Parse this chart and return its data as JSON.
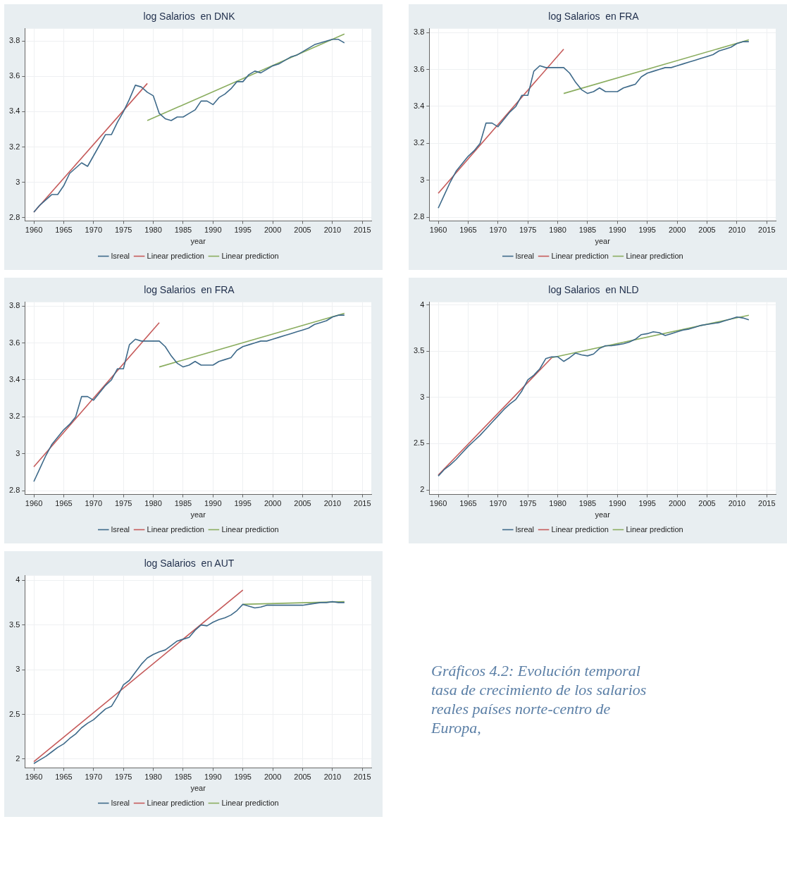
{
  "chart_data": [
    {
      "type": "line",
      "title": "log Salarios  en DNK",
      "xlabel": "year",
      "xlim": [
        1958.5,
        2016.5
      ],
      "xticks": [
        1960,
        1965,
        1970,
        1975,
        1980,
        1985,
        1990,
        1995,
        2000,
        2005,
        2010,
        2015
      ],
      "ylim": [
        2.78,
        3.87
      ],
      "yticks": [
        2.8,
        3,
        3.2,
        3.4,
        3.6,
        3.8
      ],
      "grid": true,
      "legend": "bottom",
      "marker": "none",
      "series": [
        {
          "name": "lsreal",
          "color": "#3e6a8a",
          "x": [
            1960,
            1961,
            1962,
            1963,
            1964,
            1965,
            1966,
            1967,
            1968,
            1969,
            1970,
            1971,
            1972,
            1973,
            1974,
            1975,
            1976,
            1977,
            1978,
            1979,
            1980,
            1981,
            1982,
            1983,
            1984,
            1985,
            1986,
            1987,
            1988,
            1989,
            1990,
            1991,
            1992,
            1993,
            1994,
            1995,
            1996,
            1997,
            1998,
            1999,
            2000,
            2001,
            2002,
            2003,
            2004,
            2005,
            2006,
            2007,
            2008,
            2009,
            2010,
            2011,
            2012
          ],
          "values": [
            2.83,
            2.87,
            2.9,
            2.93,
            2.93,
            2.98,
            3.05,
            3.08,
            3.11,
            3.09,
            3.15,
            3.21,
            3.27,
            3.27,
            3.34,
            3.4,
            3.47,
            3.55,
            3.54,
            3.51,
            3.49,
            3.39,
            3.36,
            3.35,
            3.37,
            3.37,
            3.39,
            3.41,
            3.46,
            3.46,
            3.44,
            3.48,
            3.5,
            3.53,
            3.57,
            3.57,
            3.61,
            3.63,
            3.62,
            3.64,
            3.66,
            3.67,
            3.69,
            3.71,
            3.72,
            3.74,
            3.76,
            3.78,
            3.79,
            3.8,
            3.81,
            3.81,
            3.79
          ]
        },
        {
          "name": "Linear prediction",
          "color": "#c55a5a",
          "x": [
            1960,
            1979
          ],
          "values": [
            2.83,
            3.56
          ]
        },
        {
          "name": "Linear prediction",
          "color": "#8aad5f",
          "x": [
            1979,
            2012
          ],
          "values": [
            3.35,
            3.84
          ]
        }
      ]
    },
    {
      "type": "line",
      "title": "log Salarios  en FRA",
      "xlabel": "year",
      "xlim": [
        1958.5,
        2016.5
      ],
      "xticks": [
        1960,
        1965,
        1970,
        1975,
        1980,
        1985,
        1990,
        1995,
        2000,
        2005,
        2010,
        2015
      ],
      "ylim": [
        2.78,
        3.82
      ],
      "yticks": [
        2.8,
        3,
        3.2,
        3.4,
        3.6,
        3.8
      ],
      "grid": true,
      "legend": "bottom",
      "marker": "none",
      "series": [
        {
          "name": "lsreal",
          "color": "#3e6a8a",
          "x": [
            1960,
            1961,
            1962,
            1963,
            1964,
            1965,
            1966,
            1967,
            1968,
            1969,
            1970,
            1971,
            1972,
            1973,
            1974,
            1975,
            1976,
            1977,
            1978,
            1979,
            1980,
            1981,
            1982,
            1983,
            1984,
            1985,
            1986,
            1987,
            1988,
            1989,
            1990,
            1991,
            1992,
            1993,
            1994,
            1995,
            1996,
            1997,
            1998,
            1999,
            2000,
            2001,
            2002,
            2003,
            2004,
            2005,
            2006,
            2007,
            2008,
            2009,
            2010,
            2011,
            2012
          ],
          "values": [
            2.85,
            2.92,
            2.99,
            3.05,
            3.09,
            3.13,
            3.16,
            3.2,
            3.31,
            3.31,
            3.29,
            3.33,
            3.37,
            3.4,
            3.46,
            3.46,
            3.59,
            3.62,
            3.61,
            3.61,
            3.61,
            3.61,
            3.58,
            3.53,
            3.49,
            3.47,
            3.48,
            3.5,
            3.48,
            3.48,
            3.48,
            3.5,
            3.51,
            3.52,
            3.56,
            3.58,
            3.59,
            3.6,
            3.61,
            3.61,
            3.62,
            3.63,
            3.64,
            3.65,
            3.66,
            3.67,
            3.68,
            3.7,
            3.71,
            3.72,
            3.74,
            3.75,
            3.75
          ]
        },
        {
          "name": "Linear prediction",
          "color": "#c55a5a",
          "x": [
            1960,
            1981
          ],
          "values": [
            2.93,
            3.71
          ]
        },
        {
          "name": "Linear prediction",
          "color": "#8aad5f",
          "x": [
            1981,
            2012
          ],
          "values": [
            3.47,
            3.76
          ]
        }
      ]
    },
    {
      "type": "line",
      "title": "log Salarios  en FRA",
      "xlabel": "year",
      "xlim": [
        1958.5,
        2016.5
      ],
      "xticks": [
        1960,
        1965,
        1970,
        1975,
        1980,
        1985,
        1990,
        1995,
        2000,
        2005,
        2010,
        2015
      ],
      "ylim": [
        2.78,
        3.82
      ],
      "yticks": [
        2.8,
        3,
        3.2,
        3.4,
        3.6,
        3.8
      ],
      "grid": true,
      "legend": "bottom",
      "marker": "none",
      "series": [
        {
          "name": "lsreal",
          "color": "#3e6a8a",
          "x": [
            1960,
            1961,
            1962,
            1963,
            1964,
            1965,
            1966,
            1967,
            1968,
            1969,
            1970,
            1971,
            1972,
            1973,
            1974,
            1975,
            1976,
            1977,
            1978,
            1979,
            1980,
            1981,
            1982,
            1983,
            1984,
            1985,
            1986,
            1987,
            1988,
            1989,
            1990,
            1991,
            1992,
            1993,
            1994,
            1995,
            1996,
            1997,
            1998,
            1999,
            2000,
            2001,
            2002,
            2003,
            2004,
            2005,
            2006,
            2007,
            2008,
            2009,
            2010,
            2011,
            2012
          ],
          "values": [
            2.85,
            2.92,
            2.99,
            3.05,
            3.09,
            3.13,
            3.16,
            3.2,
            3.31,
            3.31,
            3.29,
            3.33,
            3.37,
            3.4,
            3.46,
            3.46,
            3.59,
            3.62,
            3.61,
            3.61,
            3.61,
            3.61,
            3.58,
            3.53,
            3.49,
            3.47,
            3.48,
            3.5,
            3.48,
            3.48,
            3.48,
            3.5,
            3.51,
            3.52,
            3.56,
            3.58,
            3.59,
            3.6,
            3.61,
            3.61,
            3.62,
            3.63,
            3.64,
            3.65,
            3.66,
            3.67,
            3.68,
            3.7,
            3.71,
            3.72,
            3.74,
            3.75,
            3.75
          ]
        },
        {
          "name": "Linear prediction",
          "color": "#c55a5a",
          "x": [
            1960,
            1981
          ],
          "values": [
            2.93,
            3.71
          ]
        },
        {
          "name": "Linear prediction",
          "color": "#8aad5f",
          "x": [
            1981,
            2012
          ],
          "values": [
            3.47,
            3.76
          ]
        }
      ]
    },
    {
      "type": "line",
      "title": "log Salarios  en NLD",
      "xlabel": "year",
      "xlim": [
        1958.5,
        2016.5
      ],
      "xticks": [
        1960,
        1965,
        1970,
        1975,
        1980,
        1985,
        1990,
        1995,
        2000,
        2005,
        2010,
        2015
      ],
      "ylim": [
        1.95,
        4.03
      ],
      "yticks": [
        2,
        2.5,
        3,
        3.5,
        4
      ],
      "grid": true,
      "legend": "bottom",
      "marker": "none",
      "series": [
        {
          "name": "lsreal",
          "color": "#3e6a8a",
          "x": [
            1960,
            1961,
            1962,
            1963,
            1964,
            1965,
            1966,
            1967,
            1968,
            1969,
            1970,
            1971,
            1972,
            1973,
            1974,
            1975,
            1976,
            1977,
            1978,
            1979,
            1980,
            1981,
            1982,
            1983,
            1984,
            1985,
            1986,
            1987,
            1988,
            1989,
            1990,
            1991,
            1992,
            1993,
            1994,
            1995,
            1996,
            1997,
            1998,
            1999,
            2000,
            2001,
            2002,
            2003,
            2004,
            2005,
            2006,
            2007,
            2008,
            2009,
            2010,
            2011,
            2012
          ],
          "values": [
            2.15,
            2.22,
            2.27,
            2.33,
            2.4,
            2.47,
            2.53,
            2.59,
            2.66,
            2.73,
            2.8,
            2.87,
            2.93,
            2.98,
            3.07,
            3.19,
            3.24,
            3.31,
            3.42,
            3.44,
            3.44,
            3.39,
            3.43,
            3.48,
            3.46,
            3.45,
            3.47,
            3.53,
            3.56,
            3.56,
            3.57,
            3.58,
            3.6,
            3.63,
            3.68,
            3.69,
            3.71,
            3.7,
            3.67,
            3.69,
            3.71,
            3.73,
            3.74,
            3.76,
            3.78,
            3.79,
            3.8,
            3.81,
            3.83,
            3.85,
            3.87,
            3.86,
            3.84
          ]
        },
        {
          "name": "Linear prediction",
          "color": "#c55a5a",
          "x": [
            1960,
            1979
          ],
          "values": [
            2.16,
            3.43
          ]
        },
        {
          "name": "Linear prediction",
          "color": "#8aad5f",
          "x": [
            1979,
            2012
          ],
          "values": [
            3.43,
            3.89
          ]
        }
      ]
    },
    {
      "type": "line",
      "title": "log Salarios  en AUT",
      "xlabel": "year",
      "xlim": [
        1958.5,
        2016.5
      ],
      "xticks": [
        1960,
        1965,
        1970,
        1975,
        1980,
        1985,
        1990,
        1995,
        2000,
        2005,
        2010,
        2015
      ],
      "ylim": [
        1.9,
        4.05
      ],
      "yticks": [
        2,
        2.5,
        3,
        3.5,
        4
      ],
      "grid": true,
      "legend": "bottom",
      "marker": "none",
      "series": [
        {
          "name": "lsreal",
          "color": "#3e6a8a",
          "x": [
            1960,
            1961,
            1962,
            1963,
            1964,
            1965,
            1966,
            1967,
            1968,
            1969,
            1970,
            1971,
            1972,
            1973,
            1974,
            1975,
            1976,
            1977,
            1978,
            1979,
            1980,
            1981,
            1982,
            1983,
            1984,
            1985,
            1986,
            1987,
            1988,
            1989,
            1990,
            1991,
            1992,
            1993,
            1994,
            1995,
            1996,
            1997,
            1998,
            1999,
            2000,
            2001,
            2002,
            2003,
            2004,
            2005,
            2006,
            2007,
            2008,
            2009,
            2010,
            2011,
            2012
          ],
          "values": [
            1.95,
            1.99,
            2.03,
            2.08,
            2.13,
            2.17,
            2.23,
            2.28,
            2.35,
            2.4,
            2.44,
            2.5,
            2.56,
            2.59,
            2.7,
            2.83,
            2.88,
            2.97,
            3.06,
            3.13,
            3.17,
            3.2,
            3.22,
            3.27,
            3.32,
            3.34,
            3.36,
            3.44,
            3.5,
            3.49,
            3.53,
            3.56,
            3.58,
            3.61,
            3.66,
            3.73,
            3.71,
            3.69,
            3.7,
            3.72,
            3.72,
            3.72,
            3.72,
            3.72,
            3.72,
            3.72,
            3.73,
            3.74,
            3.75,
            3.75,
            3.76,
            3.75,
            3.75
          ]
        },
        {
          "name": "Linear prediction",
          "color": "#c55a5a",
          "x": [
            1960,
            1995
          ],
          "values": [
            1.97,
            3.89
          ]
        },
        {
          "name": "Linear prediction",
          "color": "#8aad5f",
          "x": [
            1995,
            2012
          ],
          "values": [
            3.73,
            3.76
          ]
        }
      ]
    },
    {
      "type": "other",
      "annotations": [
        "Gráficos 4.2: Evolución temporal tasa de crecimiento de los salarios reales países norte-centro de Europa,"
      ]
    }
  ]
}
